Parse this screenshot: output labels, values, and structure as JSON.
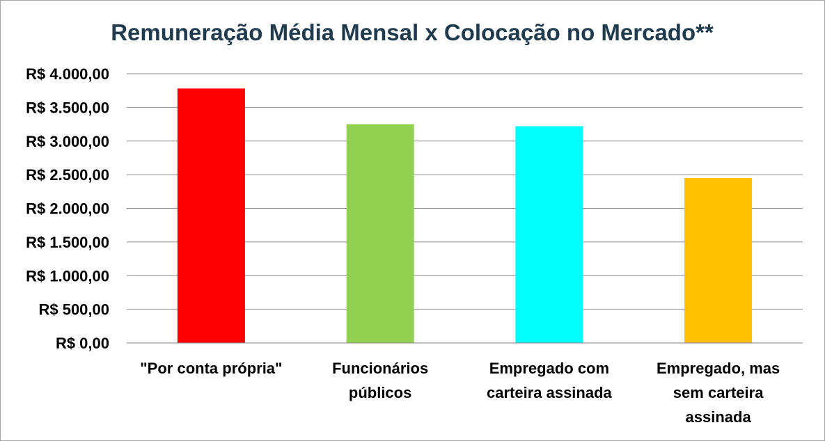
{
  "chart_data": {
    "type": "bar",
    "title": "Remuneração Média Mensal x Colocação no Mercado**",
    "xlabel": "",
    "ylabel": "",
    "categories": [
      [
        "\"Por conta própria\""
      ],
      [
        "Funcionários",
        "públicos"
      ],
      [
        "Empregado com",
        "carteira assinada"
      ],
      [
        "Empregado, mas",
        "sem carteira",
        "assinada"
      ]
    ],
    "values": [
      3780,
      3250,
      3220,
      2450
    ],
    "colors": [
      "#ff0000",
      "#92d050",
      "#00ffff",
      "#ffc000"
    ],
    "ylim": [
      0,
      4000
    ],
    "ytick_values": [
      0,
      500,
      1000,
      1500,
      2000,
      2500,
      3000,
      3500,
      4000
    ],
    "ytick_labels": [
      "R$ 0,00",
      "R$ 500,00",
      "R$ 1.000,00",
      "R$ 1.500,00",
      "R$ 2.000,00",
      "R$ 2.500,00",
      "R$ 3.000,00",
      "R$ 3.500,00",
      "R$ 4.000,00"
    ],
    "grid": true,
    "legend": "none"
  }
}
